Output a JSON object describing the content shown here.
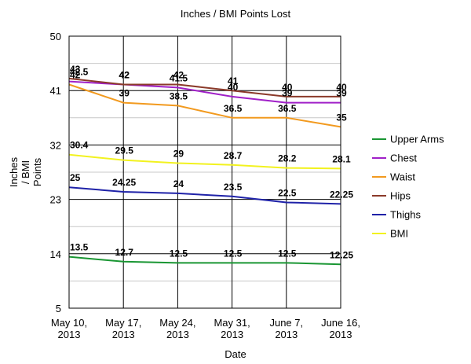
{
  "chart_data": {
    "type": "line",
    "title": "Inches / BMI Points Lost",
    "xlabel": "Date",
    "ylabel": "Inches / BMI Points",
    "ylim": [
      5,
      50
    ],
    "yticks": [
      5,
      14,
      23,
      32,
      41,
      50
    ],
    "categories": [
      [
        "May 10,",
        "2013"
      ],
      [
        "May 17,",
        "2013"
      ],
      [
        "May 24,",
        "2013"
      ],
      [
        "May 31,",
        "2013"
      ],
      [
        "June 7,",
        "2013"
      ],
      [
        "June 16,",
        "2013"
      ]
    ],
    "grid": true,
    "legend_position": "right",
    "series": [
      {
        "name": "Upper Arms",
        "color": "#1a9633",
        "values": [
          13.5,
          12.7,
          12.5,
          12.5,
          12.5,
          12.25
        ],
        "labels": [
          "13.5",
          "12.7",
          "12.5",
          "12.5",
          "12.5",
          "12.25"
        ]
      },
      {
        "name": "Chest",
        "color": "#a020c8",
        "values": [
          42.5,
          42,
          41.5,
          40,
          39,
          39
        ],
        "labels": [
          "42.5",
          "42",
          "41.5",
          "40",
          "39",
          "39"
        ]
      },
      {
        "name": "Waist",
        "color": "#f29a1f",
        "values": [
          42,
          39,
          38.5,
          36.5,
          36.5,
          35
        ],
        "labels": [
          "42",
          "39",
          "38.5",
          "36.5",
          "36.5",
          "35"
        ]
      },
      {
        "name": "Hips",
        "color": "#8b3a2a",
        "values": [
          43,
          42,
          42,
          41,
          40,
          40
        ],
        "labels": [
          "43",
          "42",
          "42",
          "41",
          "40",
          "40"
        ]
      },
      {
        "name": "Thighs",
        "color": "#1f22a8",
        "values": [
          25,
          24.25,
          24,
          23.5,
          22.5,
          22.25
        ],
        "labels": [
          "25",
          "24.25",
          "24",
          "23.5",
          "22.5",
          "22.25"
        ]
      },
      {
        "name": "BMI",
        "color": "#f2f21f",
        "values": [
          30.4,
          29.5,
          29,
          28.7,
          28.2,
          28.1
        ],
        "labels": [
          "30.4",
          "29.5",
          "29",
          "28.7",
          "28.2",
          "28.1"
        ]
      }
    ]
  }
}
